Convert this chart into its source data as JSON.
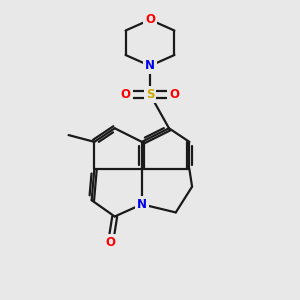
{
  "bg_color": "#e8e8e8",
  "atom_colors": {
    "C": "#000000",
    "N": "#0000ee",
    "O": "#ff0000",
    "S": "#ccaa00"
  },
  "bond_color": "#1a1a1a",
  "bond_width": 1.6,
  "figsize": [
    3.0,
    3.0
  ],
  "dpi": 100,
  "xlim": [
    0.5,
    9.5
  ],
  "ylim": [
    0.5,
    11.5
  ]
}
